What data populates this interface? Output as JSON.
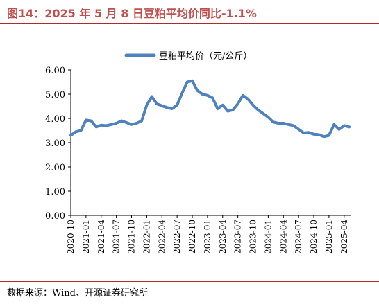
{
  "title": "图14：2025 年 5 月 8 日豆粕平均价同比-1.1%",
  "source": "数据来源：Wind、开源证券研究所",
  "chart_data": {
    "type": "line",
    "legend": "豆粕平均价（元/公斤）",
    "legend_position": "top-center",
    "grid": false,
    "ylim": [
      0,
      6
    ],
    "y_ticks": [
      "0.00",
      "1.00",
      "2.00",
      "3.00",
      "4.00",
      "5.00",
      "6.00"
    ],
    "x_ticks": [
      "2020-10",
      "2021-01",
      "2021-04",
      "2021-07",
      "2021-10",
      "2022-01",
      "2022-04",
      "2022-07",
      "2022-10",
      "2023-01",
      "2023-04",
      "2023-07",
      "2023-10",
      "2024-01",
      "2024-04",
      "2024-07",
      "2024-10",
      "2025-01",
      "2025-04"
    ],
    "series_color": "#4f81bd",
    "x": [
      "2020-10",
      "2020-11",
      "2020-12",
      "2021-01",
      "2021-02",
      "2021-03",
      "2021-04",
      "2021-05",
      "2021-06",
      "2021-07",
      "2021-08",
      "2021-09",
      "2021-10",
      "2021-11",
      "2021-12",
      "2022-01",
      "2022-02",
      "2022-03",
      "2022-04",
      "2022-05",
      "2022-06",
      "2022-07",
      "2022-08",
      "2022-09",
      "2022-10",
      "2022-11",
      "2022-12",
      "2023-01",
      "2023-02",
      "2023-03",
      "2023-04",
      "2023-05",
      "2023-06",
      "2023-07",
      "2023-08",
      "2023-09",
      "2023-10",
      "2023-11",
      "2023-12",
      "2024-01",
      "2024-02",
      "2024-03",
      "2024-04",
      "2024-05",
      "2024-06",
      "2024-07",
      "2024-08",
      "2024-09",
      "2024-10",
      "2024-11",
      "2024-12",
      "2025-01",
      "2025-02",
      "2025-03",
      "2025-04",
      "2025-05"
    ],
    "values": [
      3.3,
      3.45,
      3.5,
      3.93,
      3.9,
      3.65,
      3.72,
      3.7,
      3.75,
      3.8,
      3.9,
      3.83,
      3.75,
      3.8,
      3.9,
      4.55,
      4.9,
      4.6,
      4.52,
      4.45,
      4.4,
      4.55,
      5.05,
      5.5,
      5.55,
      5.15,
      5.0,
      4.95,
      4.85,
      4.4,
      4.55,
      4.3,
      4.35,
      4.6,
      4.95,
      4.8,
      4.55,
      4.35,
      4.2,
      4.05,
      3.85,
      3.8,
      3.8,
      3.75,
      3.7,
      3.55,
      3.4,
      3.42,
      3.35,
      3.33,
      3.25,
      3.3,
      3.75,
      3.55,
      3.7,
      3.65
    ]
  }
}
